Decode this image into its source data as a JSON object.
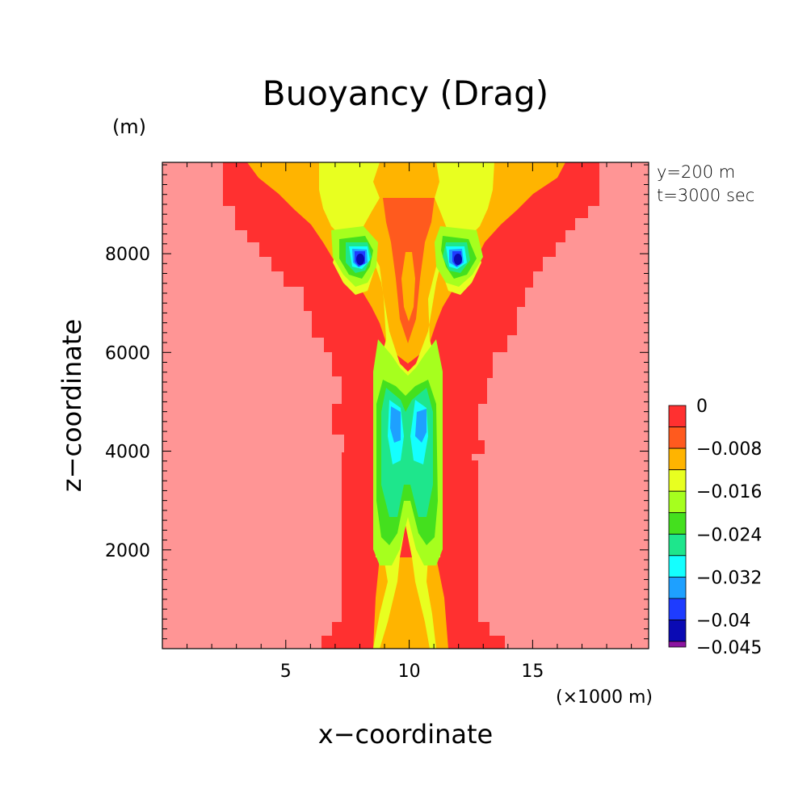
{
  "chart_data": {
    "type": "heatmap",
    "title": "Buoyancy (Drag)",
    "xlabel": "x−coordinate",
    "ylabel": "z−coordinate",
    "x_unit": "(×1000 m)",
    "y_unit": "(m)",
    "annotations": [
      "y=200 m",
      "t=3000 sec"
    ],
    "xlim": [
      0,
      19.7
    ],
    "ylim": [
      0,
      9850
    ],
    "x_ticks": [
      5,
      10,
      15
    ],
    "x_tick_labels": [
      "5",
      "10",
      "15"
    ],
    "y_ticks": [
      2000,
      4000,
      6000,
      8000
    ],
    "y_tick_labels": [
      "2000",
      "4000",
      "6000",
      "8000"
    ],
    "colorbar": {
      "labels": [
        "0",
        "−0.008",
        "−0.016",
        "−0.024",
        "−0.032",
        "−0.04",
        "−0.045"
      ],
      "levels": [
        0,
        -0.004,
        -0.008,
        -0.012,
        -0.016,
        -0.02,
        -0.024,
        -0.028,
        -0.032,
        -0.036,
        -0.04,
        -0.044,
        -0.045
      ],
      "colors": [
        "#ff3030",
        "#ff5a1e",
        "#ffb400",
        "#e8ff20",
        "#a6ff1e",
        "#44e01e",
        "#1ee68c",
        "#14ffff",
        "#1ea0ff",
        "#1e3cff",
        "#0a0ab4",
        "#8c14a0"
      ]
    },
    "background_color": "#ff9595",
    "fields": [
      {
        "level": "0 to -0.004",
        "color": "#ff3030",
        "description": "outer plume envelope, widening with height"
      },
      {
        "level": "-0.004 to -0.008",
        "color": "#ff5a1e",
        "description": "inner plume core near centre"
      },
      {
        "level": "-0.008 to -0.016",
        "color": "#ffb400",
        "description": "lower core and upper crown"
      },
      {
        "level": "-0.016 to -0.024",
        "color": "#a6ff1e",
        "description": "central column"
      },
      {
        "level": "-0.024 to -0.036",
        "color": "#14ffff",
        "description": "minima near z=4700 m"
      },
      {
        "level": "-0.036 to -0.045",
        "color": "#0a0ab4",
        "description": "minima near x=8,12 z=8000 m"
      }
    ]
  }
}
